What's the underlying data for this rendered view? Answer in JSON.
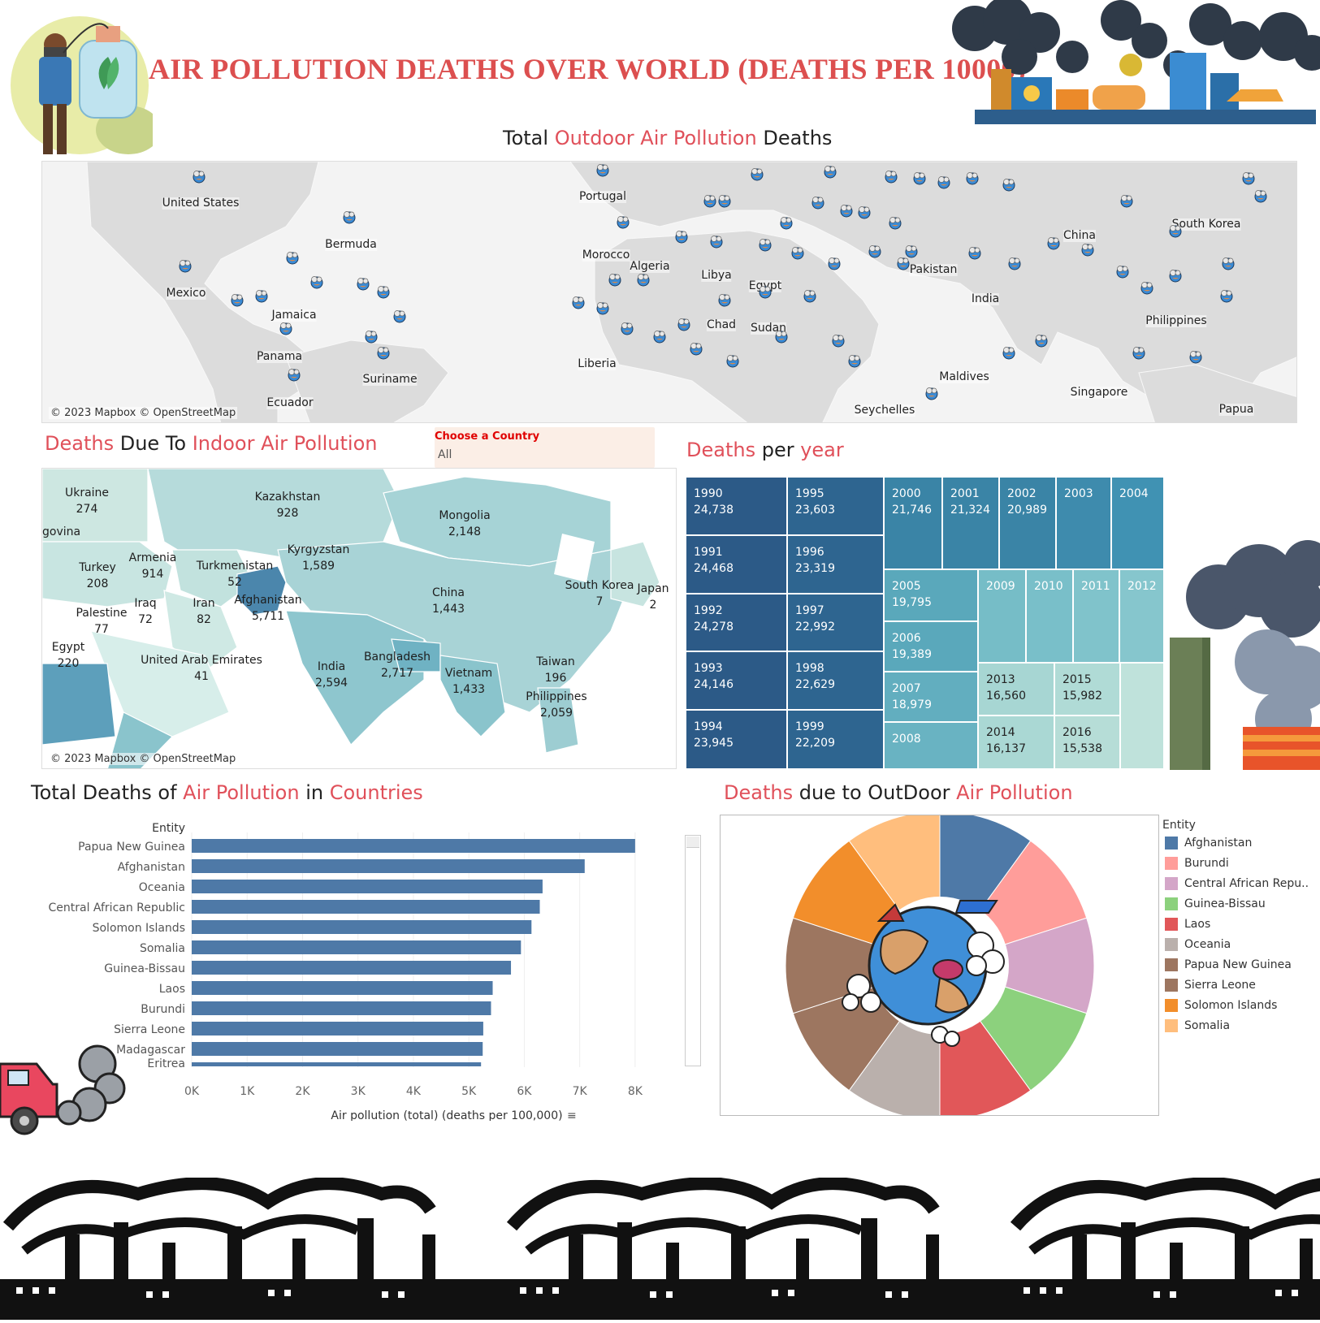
{
  "header": {
    "title": "AIR POLLUTION DEATHS OVER WORLD (DEATHS PER 10000)"
  },
  "outdoor_map": {
    "title_a": "Total ",
    "title_b": "Outdoor Air Pollution",
    "title_c": " Deaths",
    "copyright": "© 2023 Mapbox © OpenStreetMap",
    "labels": [
      "United States",
      "Bermuda",
      "Mexico",
      "Jamaica",
      "Panama",
      "Suriname",
      "Ecuador",
      "Portugal",
      "Morocco",
      "Algeria",
      "Libya",
      "Egypt",
      "Chad",
      "Sudan",
      "Liberia",
      "Seychelles",
      "Pakistan",
      "India",
      "Maldives",
      "China",
      "South Korea",
      "Philippines",
      "Singapore",
      "Papua"
    ]
  },
  "indoor_map": {
    "title_a": "Deaths",
    "title_b": " Due To ",
    "title_c": "Indoor Air Pollution",
    "copyright": "© 2023 Mapbox © OpenStreetMap",
    "countries": [
      {
        "name": "Ukraine",
        "value": "274"
      },
      {
        "name": "Kazakhstan",
        "value": "928"
      },
      {
        "name": "Mongolia",
        "value": "2,148"
      },
      {
        "name": "Kyrgyzstan",
        "value": "1,589"
      },
      {
        "name": "Armenia",
        "value": "914"
      },
      {
        "name": "Turkey",
        "value": "208"
      },
      {
        "name": "Turkmenistan",
        "value": "52"
      },
      {
        "name": "Iraq",
        "value": "72"
      },
      {
        "name": "Iran",
        "value": "82"
      },
      {
        "name": "Afghanistan",
        "value": "5,711"
      },
      {
        "name": "Palestine",
        "value": "77"
      },
      {
        "name": "China",
        "value": "1,443"
      },
      {
        "name": "South Korea",
        "value": "7"
      },
      {
        "name": "Japan",
        "value": "2"
      },
      {
        "name": "Egypt",
        "value": "220"
      },
      {
        "name": "United Arab Emirates",
        "value": "41"
      },
      {
        "name": "India",
        "value": "2,594"
      },
      {
        "name": "Bangladesh",
        "value": "2,717"
      },
      {
        "name": "Vietnam",
        "value": "1,433"
      },
      {
        "name": "Taiwan",
        "value": "196"
      },
      {
        "name": "Philippines",
        "value": "2,059"
      }
    ],
    "partial_label": "govina"
  },
  "filter": {
    "label": "Choose a Country",
    "value": "All"
  },
  "treemap": {
    "title_a": "Deaths",
    "title_b": " per ",
    "title_c": "year",
    "cells": [
      {
        "year": "1990",
        "value": "24,738"
      },
      {
        "year": "1991",
        "value": "24,468"
      },
      {
        "year": "1992",
        "value": "24,278"
      },
      {
        "year": "1993",
        "value": "24,146"
      },
      {
        "year": "1994",
        "value": "23,945"
      },
      {
        "year": "1995",
        "value": "23,603"
      },
      {
        "year": "1996",
        "value": "23,319"
      },
      {
        "year": "1997",
        "value": "22,992"
      },
      {
        "year": "1998",
        "value": "22,629"
      },
      {
        "year": "1999",
        "value": "22,209"
      },
      {
        "year": "2000",
        "value": "21,746"
      },
      {
        "year": "2001",
        "value": "21,324"
      },
      {
        "year": "2002",
        "value": "20,989"
      },
      {
        "year": "2003",
        "value": ""
      },
      {
        "year": "2004",
        "value": ""
      },
      {
        "year": "2005",
        "value": "19,795"
      },
      {
        "year": "2006",
        "value": "19,389"
      },
      {
        "year": "2007",
        "value": "18,979"
      },
      {
        "year": "2008",
        "value": ""
      },
      {
        "year": "2009",
        "value": ""
      },
      {
        "year": "2010",
        "value": ""
      },
      {
        "year": "2011",
        "value": ""
      },
      {
        "year": "2012",
        "value": ""
      },
      {
        "year": "2013",
        "value": "16,560"
      },
      {
        "year": "2014",
        "value": "16,137"
      },
      {
        "year": "2015",
        "value": "15,982"
      },
      {
        "year": "2016",
        "value": "15,538"
      },
      {
        "year": "",
        "value": ""
      }
    ]
  },
  "bar_section": {
    "title_a": "Total Deaths of ",
    "title_b": "Air Pollution",
    "title_c": " in ",
    "title_d": "Countries"
  },
  "pie_section": {
    "title_a": "Deaths",
    "title_b": " due to OutDoor ",
    "title_c": "Air Pollution"
  },
  "chart_data": [
    {
      "type": "bar",
      "title": "Total Deaths of Air Pollution in Countries",
      "ylabel": "Entity",
      "xlabel": "Air pollution (total) (deaths per 100,000)",
      "categories": [
        "Papua New Guinea",
        "Afghanistan",
        "Oceania",
        "Central African Republic",
        "Solomon Islands",
        "Somalia",
        "Guinea-Bissau",
        "Laos",
        "Burundi",
        "Sierra Leone",
        "Madagascar",
        "Eritrea"
      ],
      "values": [
        8000,
        7090,
        6330,
        6280,
        6130,
        5940,
        5760,
        5430,
        5400,
        5260,
        5250,
        5220
      ],
      "xlim": [
        0,
        8500
      ],
      "ticks": [
        "0K",
        "1K",
        "2K",
        "3K",
        "4K",
        "5K",
        "6K",
        "7K",
        "8K"
      ],
      "color": "#4e79a7"
    },
    {
      "type": "pie",
      "title": "Deaths due to OutDoor Air Pollution",
      "legend_title": "Entity",
      "series": [
        {
          "name": "Afghanistan",
          "value": 10,
          "color": "#4e79a7"
        },
        {
          "name": "Burundi",
          "value": 10,
          "color": "#ff9d9a"
        },
        {
          "name": "Central African Repu..",
          "value": 10,
          "color": "#d4a6c8"
        },
        {
          "name": "Guinea-Bissau",
          "value": 10,
          "color": "#8cd17d"
        },
        {
          "name": "Laos",
          "value": 10,
          "color": "#e15759"
        },
        {
          "name": "Oceania",
          "value": 10,
          "color": "#bab0ac"
        },
        {
          "name": "Papua New Guinea",
          "value": 10,
          "color": "#9d7660"
        },
        {
          "name": "Sierra Leone",
          "value": 10,
          "color": "#9d7660"
        },
        {
          "name": "Solomon Islands",
          "value": 10,
          "color": "#f28e2b"
        },
        {
          "name": "Somalia",
          "value": 10,
          "color": "#ffbe7d"
        }
      ]
    }
  ]
}
